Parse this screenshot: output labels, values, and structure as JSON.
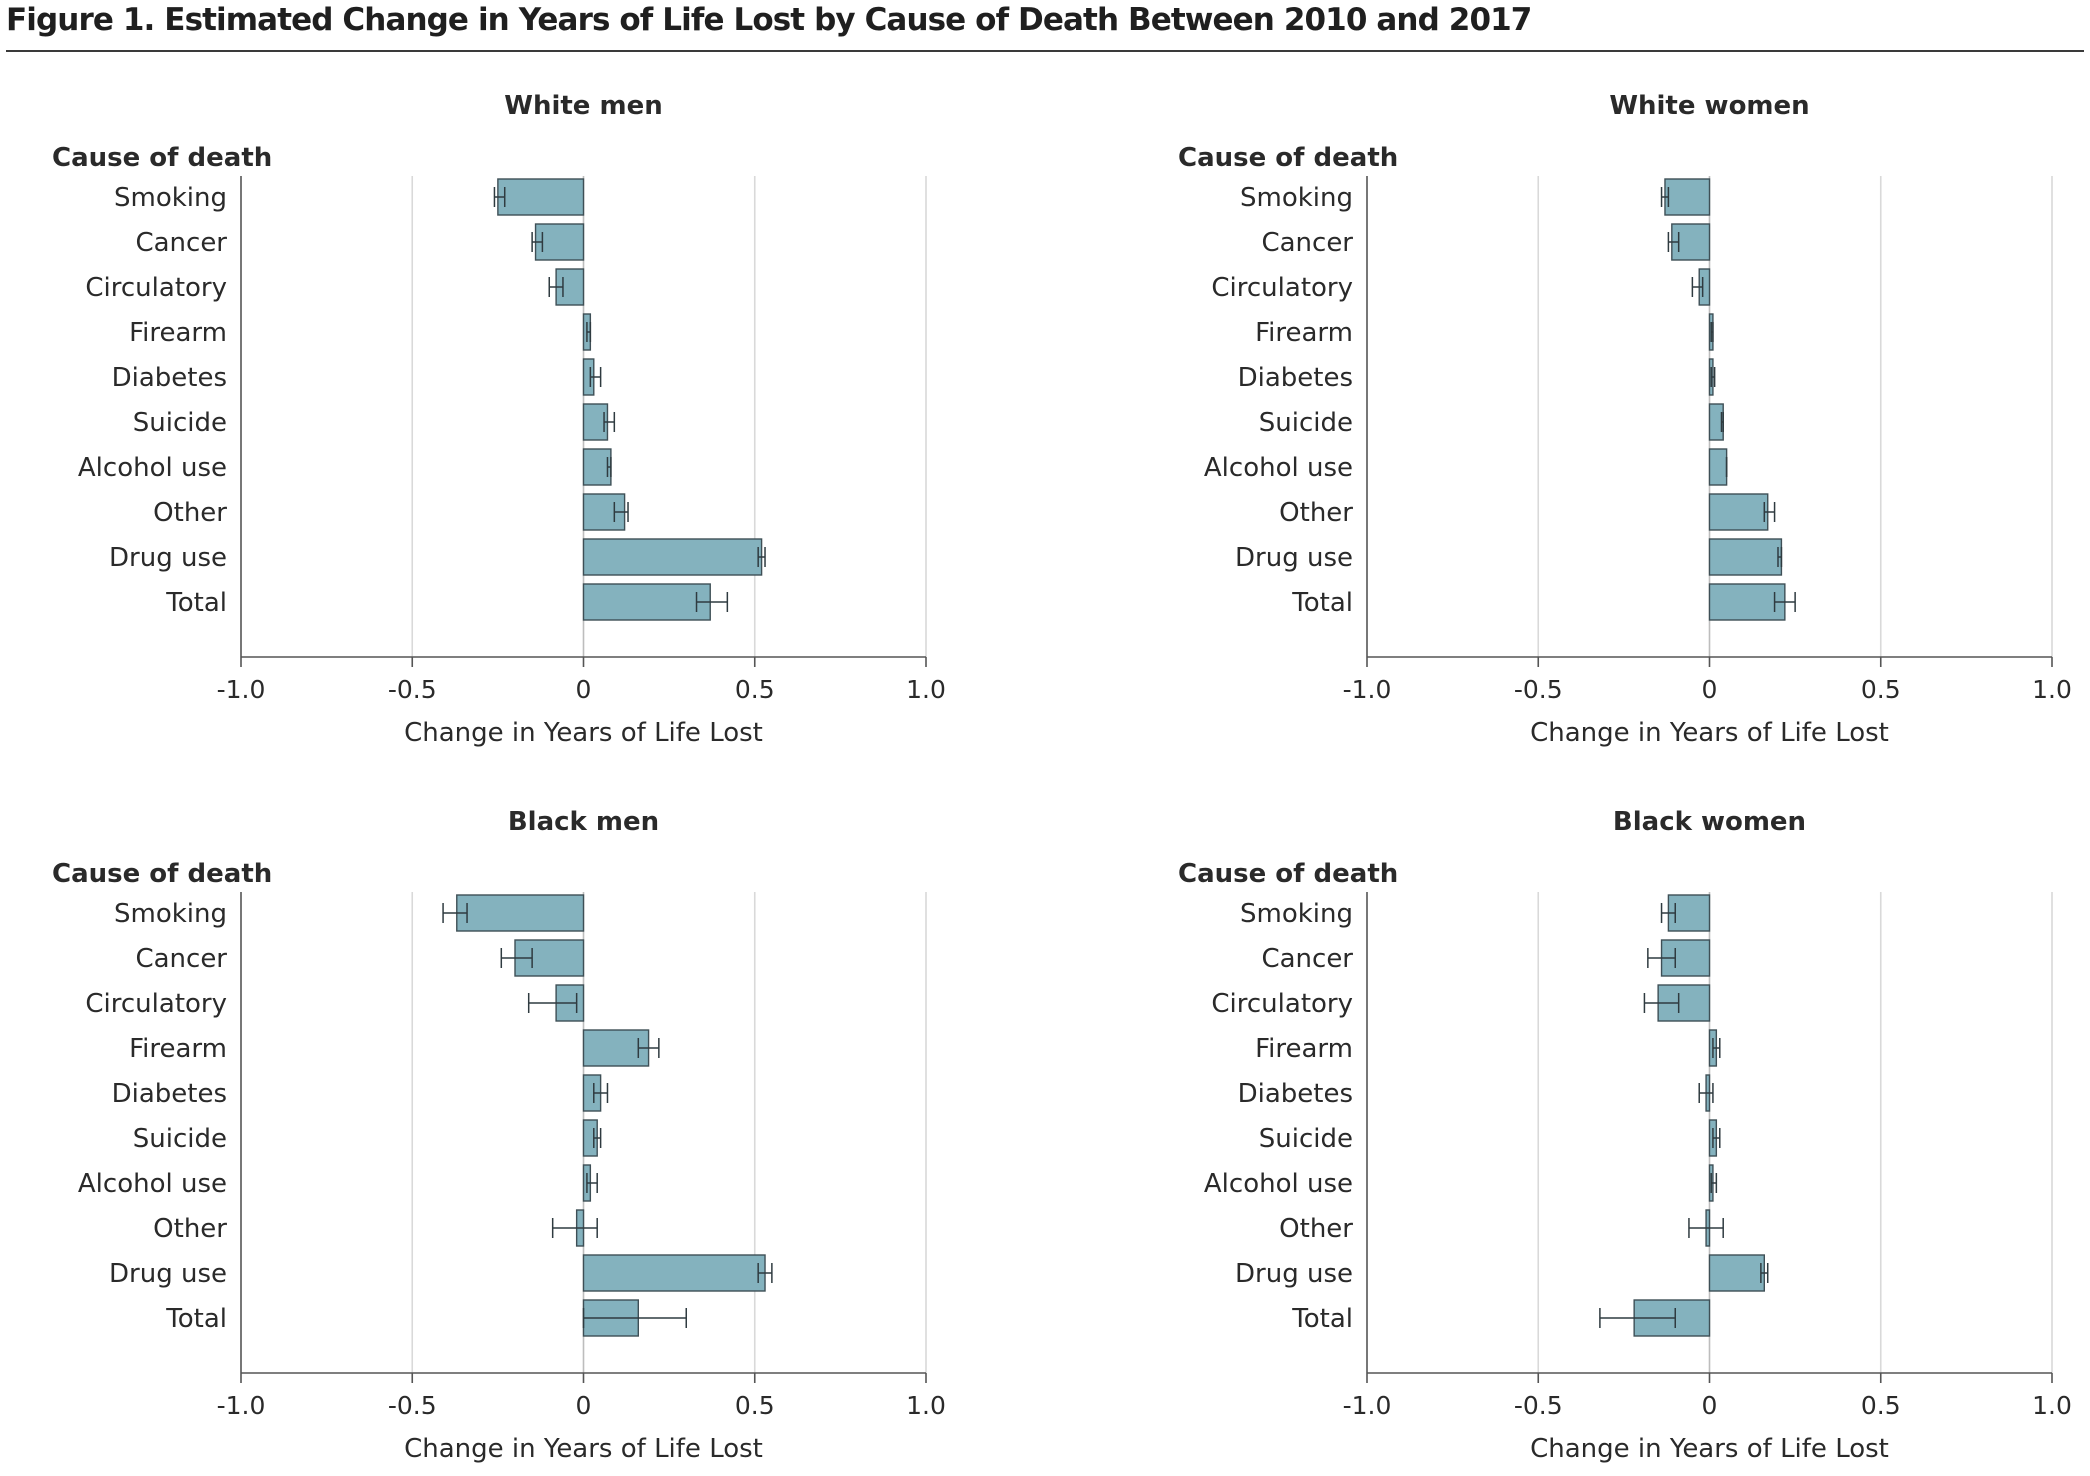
{
  "figure": {
    "title": "Figure 1. Estimated Change in Years of Life Lost by Cause of Death Between 2010 and 2017"
  },
  "colors": {
    "bar_fill": "#84b2be",
    "bar_stroke": "#3e4f56",
    "grid": "#d9d9d9",
    "axis": "#555555",
    "text": "#2a2a2a"
  },
  "chart_data": [
    {
      "type": "bar",
      "orientation": "horizontal",
      "title": "White men",
      "category_header": "Cause of death",
      "xlabel": "Change in Years of Life Lost",
      "xlim": [
        -1.0,
        1.0
      ],
      "xticks": [
        -1.0,
        -0.5,
        0,
        0.5,
        1.0
      ],
      "xtick_labels": [
        "-1.0",
        "-0.5",
        "0",
        "0.5",
        "1.0"
      ],
      "grid": "vertical",
      "categories": [
        "Smoking",
        "Cancer",
        "Circulatory",
        "Firearm",
        "Diabetes",
        "Suicide",
        "Alcohol use",
        "Other",
        "Drug use",
        "Total"
      ],
      "values": [
        -0.25,
        -0.14,
        -0.08,
        0.02,
        0.03,
        0.07,
        0.08,
        0.12,
        0.52,
        0.37
      ],
      "error_low": [
        -0.26,
        -0.15,
        -0.1,
        0.01,
        0.02,
        0.06,
        0.07,
        0.09,
        0.51,
        0.33
      ],
      "error_high": [
        -0.23,
        -0.12,
        -0.06,
        0.02,
        0.05,
        0.09,
        0.08,
        0.13,
        0.53,
        0.42
      ]
    },
    {
      "type": "bar",
      "orientation": "horizontal",
      "title": "White women",
      "category_header": "Cause of death",
      "xlabel": "Change in Years of Life Lost",
      "xlim": [
        -1.0,
        1.0
      ],
      "xticks": [
        -1.0,
        -0.5,
        0,
        0.5,
        1.0
      ],
      "xtick_labels": [
        "-1.0",
        "-0.5",
        "0",
        "0.5",
        "1.0"
      ],
      "grid": "vertical",
      "categories": [
        "Smoking",
        "Cancer",
        "Circulatory",
        "Firearm",
        "Diabetes",
        "Suicide",
        "Alcohol use",
        "Other",
        "Drug use",
        "Total"
      ],
      "values": [
        -0.13,
        -0.11,
        -0.03,
        0.01,
        0.01,
        0.04,
        0.05,
        0.17,
        0.21,
        0.22
      ],
      "error_low": [
        -0.14,
        -0.12,
        -0.05,
        0.005,
        0.005,
        0.035,
        0.05,
        0.16,
        0.2,
        0.19
      ],
      "error_high": [
        -0.12,
        -0.09,
        -0.02,
        0.01,
        0.015,
        0.04,
        0.05,
        0.19,
        0.21,
        0.25
      ]
    },
    {
      "type": "bar",
      "orientation": "horizontal",
      "title": "Black men",
      "category_header": "Cause of death",
      "xlabel": "Change in Years of Life Lost",
      "xlim": [
        -1.0,
        1.0
      ],
      "xticks": [
        -1.0,
        -0.5,
        0,
        0.5,
        1.0
      ],
      "xtick_labels": [
        "-1.0",
        "-0.5",
        "0",
        "0.5",
        "1.0"
      ],
      "grid": "vertical",
      "categories": [
        "Smoking",
        "Cancer",
        "Circulatory",
        "Firearm",
        "Diabetes",
        "Suicide",
        "Alcohol use",
        "Other",
        "Drug use",
        "Total"
      ],
      "values": [
        -0.37,
        -0.2,
        -0.08,
        0.19,
        0.05,
        0.04,
        0.02,
        -0.02,
        0.53,
        0.16
      ],
      "error_low": [
        -0.41,
        -0.24,
        -0.16,
        0.16,
        0.03,
        0.03,
        0.01,
        -0.09,
        0.51,
        0.0
      ],
      "error_high": [
        -0.34,
        -0.15,
        -0.02,
        0.22,
        0.07,
        0.05,
        0.04,
        0.04,
        0.55,
        0.3
      ]
    },
    {
      "type": "bar",
      "orientation": "horizontal",
      "title": "Black women",
      "category_header": "Cause of death",
      "xlabel": "Change in Years of Life Lost",
      "xlim": [
        -1.0,
        1.0
      ],
      "xticks": [
        -1.0,
        -0.5,
        0,
        0.5,
        1.0
      ],
      "xtick_labels": [
        "-1.0",
        "-0.5",
        "0",
        "0.5",
        "1.0"
      ],
      "grid": "vertical",
      "categories": [
        "Smoking",
        "Cancer",
        "Circulatory",
        "Firearm",
        "Diabetes",
        "Suicide",
        "Alcohol use",
        "Other",
        "Drug use",
        "Total"
      ],
      "values": [
        -0.12,
        -0.14,
        -0.15,
        0.02,
        -0.01,
        0.02,
        0.01,
        -0.01,
        0.16,
        -0.22
      ],
      "error_low": [
        -0.14,
        -0.18,
        -0.19,
        0.01,
        -0.03,
        0.01,
        0.005,
        -0.06,
        0.15,
        -0.32
      ],
      "error_high": [
        -0.1,
        -0.1,
        -0.09,
        0.03,
        0.01,
        0.03,
        0.02,
        0.04,
        0.17,
        -0.1
      ]
    }
  ]
}
